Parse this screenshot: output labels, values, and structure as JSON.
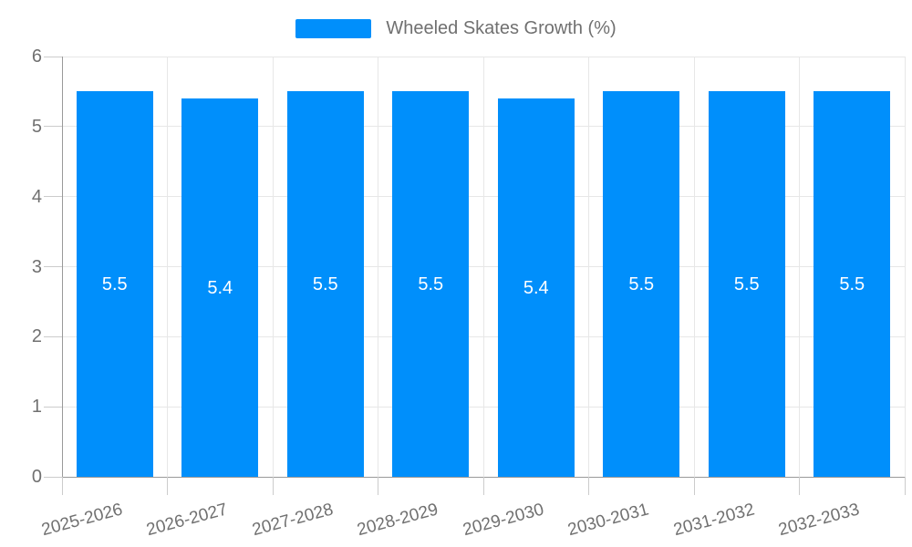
{
  "legend": {
    "series_label": "Wheeled Skates Growth (%)"
  },
  "chart_data": {
    "type": "bar",
    "title": "Wheeled Skates Growth (%)",
    "categories": [
      "2025-2026",
      "2026-2027",
      "2027-2028",
      "2028-2029",
      "2029-2030",
      "2030-2031",
      "2031-2032",
      "2032-2033"
    ],
    "values": [
      5.5,
      5.4,
      5.5,
      5.5,
      5.4,
      5.5,
      5.5,
      5.5
    ],
    "data_labels": [
      "5.5",
      "5.4",
      "5.5",
      "5.5",
      "5.4",
      "5.5",
      "5.5",
      "5.5"
    ],
    "xlabel": "",
    "ylabel": "",
    "ylim": [
      0,
      6
    ],
    "yticks": [
      0,
      1,
      2,
      3,
      4,
      5,
      6
    ],
    "grid": "on",
    "legend_position": "top-center",
    "colors": {
      "bar": "#008FFB",
      "data_label": "#ffffff",
      "axis_line": "#999999",
      "gridline": "#e7e7e7",
      "tick": "#cccccc",
      "axis_text": "#707070",
      "background": "#ffffff"
    }
  }
}
